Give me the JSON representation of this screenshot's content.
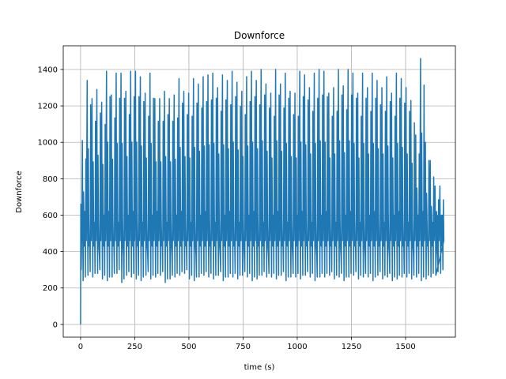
{
  "chart_data": {
    "type": "line",
    "title": "Downforce",
    "xlabel": "time (s)",
    "ylabel": "Downforce",
    "xlim": [
      -80,
      1730
    ],
    "ylim": [
      -70,
      1530
    ],
    "xticks": [
      0,
      250,
      500,
      750,
      1000,
      1250,
      1500
    ],
    "yticks": [
      0,
      200,
      400,
      600,
      800,
      1000,
      1200,
      1400
    ],
    "grid": true,
    "color": "#1f77b4",
    "series": [
      {
        "name": "",
        "cycle_period_s": 22.3,
        "start": [
          [
            0,
            0
          ],
          [
            1,
            660
          ],
          [
            3,
            300
          ],
          [
            6,
            560
          ]
        ],
        "peaks": [
          1010,
          1340,
          1240,
          1290,
          1220,
          1390,
          1260,
          1380,
          1380,
          1280,
          1390,
          1390,
          1360,
          1270,
          1380,
          1240,
          1240,
          1280,
          1240,
          1260,
          1350,
          1280,
          1270,
          1350,
          1320,
          1360,
          1370,
          1380,
          1300,
          1370,
          1340,
          1390,
          1330,
          1280,
          1360,
          1390,
          1340,
          1400,
          1320,
          1270,
          1400,
          1320,
          1380,
          1280,
          1270,
          1390,
          1370,
          1300,
          1380,
          1400,
          1390,
          1270,
          1300,
          1400,
          1310,
          1400,
          1380,
          1270,
          1380,
          1300,
          1380,
          1340,
          1300,
          1360,
          1270,
          1380,
          1350,
          1300,
          1230,
          1040,
          1460,
          1000,
          900,
          760,
          760
        ],
        "troughs": [
          240,
          270,
          260,
          280,
          250,
          240,
          260,
          280,
          230,
          270,
          260,
          250,
          240,
          270,
          250,
          260,
          270,
          230,
          250,
          260,
          270,
          280,
          250,
          240,
          260,
          270,
          260,
          250,
          270,
          240,
          260,
          260,
          250,
          270,
          260,
          240,
          250,
          270,
          260,
          260,
          250,
          270,
          240,
          260,
          260,
          250,
          270,
          260,
          240,
          260,
          260,
          270,
          250,
          260,
          240,
          260,
          270,
          250,
          260,
          260,
          240,
          270,
          250,
          260,
          240,
          250,
          260,
          260,
          250,
          260,
          240,
          250,
          260,
          270,
          280
        ],
        "end": [
          [
            1640,
            270
          ],
          [
            1643,
            620
          ],
          [
            1646,
            420
          ],
          [
            1648,
            600
          ]
        ]
      }
    ]
  }
}
